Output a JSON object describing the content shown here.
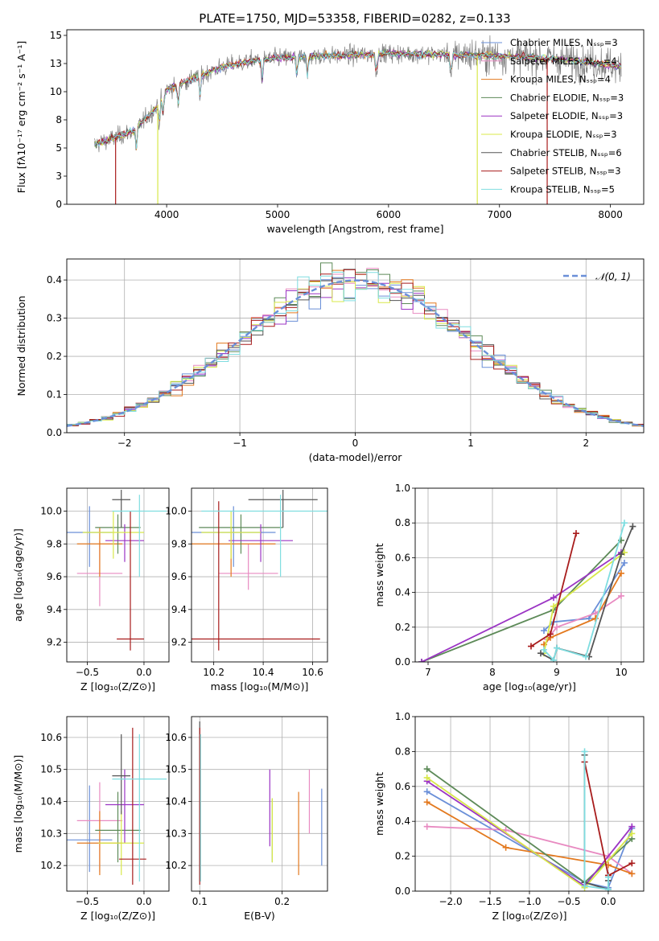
{
  "figure": {
    "title": "PLATE=1750, MJD=53358, FIBERID=0282, z=0.133"
  },
  "colors": {
    "Chabrier MILES": "#6a8fd8",
    "Salpeter MILES": "#e88ac1",
    "Kroupa MILES": "#e3791e",
    "Chabrier ELODIE": "#5d8a58",
    "Salpeter ELODIE": "#9b34c4",
    "Kroupa ELODIE": "#d8e84a",
    "Chabrier STELIB": "#555555",
    "Salpeter STELIB": "#a81c1c",
    "Kroupa STELIB": "#7fdde0",
    "data": "#7f7f7f",
    "normal": "#6a8fd8",
    "grid": "#b0b0b0"
  },
  "chart_data": [
    {
      "id": "spectrum",
      "type": "line",
      "xlabel": "wavelength [Angstrom, rest frame]",
      "ylabel": "Flux [fλ10⁻¹⁷ erg cm⁻² s⁻¹ A⁻¹]",
      "xlim": [
        3100,
        8300
      ],
      "ylim": [
        0,
        15.5
      ],
      "xticks": [
        4000,
        5000,
        6000,
        7000,
        8000
      ],
      "yticks": [
        0.0,
        2.5,
        5.0,
        7.5,
        10.0,
        12.5,
        15.0
      ],
      "legend_position": "top-right",
      "series": [
        {
          "name": "Chabrier MILES, Nₛₛₚ=3",
          "key": "Chabrier MILES"
        },
        {
          "name": "Salpeter MILES, Nₛₛₚ=4",
          "key": "Salpeter MILES"
        },
        {
          "name": "Kroupa MILES, Nₛₛₚ=4",
          "key": "Kroupa MILES"
        },
        {
          "name": "Chabrier ELODIE, Nₛₛₚ=3",
          "key": "Chabrier ELODIE"
        },
        {
          "name": "Salpeter ELODIE, Nₛₛₚ=3",
          "key": "Salpeter ELODIE"
        },
        {
          "name": "Kroupa ELODIE, Nₛₛₚ=3",
          "key": "Kroupa ELODIE"
        },
        {
          "name": "Chabrier STELIB, Nₛₛₚ=6",
          "key": "Chabrier STELIB"
        },
        {
          "name": "Salpeter STELIB, Nₛₛₚ=3",
          "key": "Salpeter STELIB"
        },
        {
          "name": "Kroupa STELIB, Nₛₛₚ=5",
          "key": "Kroupa STELIB"
        }
      ],
      "continuum": {
        "x": [
          3350,
          3500,
          3700,
          3900,
          4000,
          4200,
          4500,
          4800,
          5000,
          5300,
          5600,
          6000,
          6500,
          7000,
          7500,
          8000,
          8100
        ],
        "y": [
          5.3,
          5.8,
          6.5,
          8.5,
          10.2,
          11.0,
          12.2,
          12.8,
          13.0,
          13.2,
          13.2,
          13.4,
          13.3,
          13.2,
          12.9,
          12.4,
          12.2
        ]
      },
      "vertical_drops": [
        {
          "x": 3540,
          "series": "Salpeter STELIB"
        },
        {
          "x": 3920,
          "series": "Kroupa ELODIE"
        },
        {
          "x": 6800,
          "series": "Kroupa ELODIE"
        },
        {
          "x": 7430,
          "series": "Salpeter STELIB"
        }
      ]
    },
    {
      "id": "residuals",
      "type": "histogram",
      "xlabel": "(data-model)/error",
      "ylabel": "Normed distribution",
      "xlim": [
        -2.5,
        2.5
      ],
      "ylim": [
        0,
        0.455
      ],
      "xticks": [
        -2,
        -1,
        0,
        1,
        2
      ],
      "yticks": [
        0.0,
        0.1,
        0.2,
        0.3,
        0.4
      ],
      "bin_width": 0.1,
      "legend": "𝒩(0, 1)",
      "legend_position": "top-right",
      "normal": {
        "mean": 0,
        "sigma": 1
      }
    },
    {
      "id": "age-vs-z",
      "type": "errorbar",
      "xlabel": "Z [log₁₀(Z/Z⊙)]",
      "ylabel": "age  [log₁₀(age/yr)]",
      "xlim": [
        -0.68,
        0.22
      ],
      "ylim": [
        9.08,
        10.14
      ],
      "xticks": [
        -0.5,
        0.0
      ],
      "yticks": [
        9.2,
        9.4,
        9.6,
        9.8,
        10.0
      ],
      "points": [
        {
          "key": "Chabrier MILES",
          "x": -0.48,
          "xerr": 0.2,
          "y": 9.87,
          "yerr": [
            0.21,
            0.16
          ]
        },
        {
          "key": "Salpeter MILES",
          "x": -0.39,
          "xerr": 0.2,
          "y": 9.62,
          "yerr": [
            0.2,
            0.2
          ]
        },
        {
          "key": "Kroupa MILES",
          "x": -0.39,
          "xerr": 0.2,
          "y": 9.8,
          "yerr": [
            0.2,
            0.1
          ]
        },
        {
          "key": "Chabrier ELODIE",
          "x": -0.23,
          "xerr": 0.2,
          "y": 9.9,
          "yerr": [
            0.16,
            0.08
          ]
        },
        {
          "key": "Salpeter ELODIE",
          "x": -0.17,
          "xerr": 0.17,
          "y": 9.82,
          "yerr": [
            0.13,
            0.1
          ]
        },
        {
          "key": "Kroupa ELODIE",
          "x": -0.27,
          "xerr": 0.27,
          "y": 9.87,
          "yerr": [
            0.16,
            0.13
          ]
        },
        {
          "key": "Chabrier STELIB",
          "x": -0.2,
          "xerr": 0.08,
          "y": 10.07,
          "yerr": [
            0.17,
            0.06
          ]
        },
        {
          "key": "Salpeter STELIB",
          "x": -0.12,
          "xerr": 0.12,
          "y": 9.22,
          "yerr": [
            0.07,
            0.78
          ]
        },
        {
          "key": "Kroupa STELIB",
          "x": -0.04,
          "xerr": 0.24,
          "y": 10.0,
          "yerr": [
            0.4,
            0.1
          ]
        }
      ]
    },
    {
      "id": "age-vs-mass",
      "type": "errorbar",
      "xlabel": "mass [log₁₀(M/M⊙)]",
      "ylabel": "",
      "xlim": [
        10.11,
        10.66
      ],
      "ylim": [
        9.08,
        10.14
      ],
      "xticks": [
        10.2,
        10.4,
        10.6
      ],
      "yticks": [
        9.2,
        9.4,
        9.6,
        9.8,
        10.0
      ],
      "points": [
        {
          "key": "Chabrier MILES",
          "x": 10.28,
          "xerr": 0.17,
          "y": 9.87,
          "yerr": [
            0.21,
            0.16
          ]
        },
        {
          "key": "Salpeter MILES",
          "x": 10.34,
          "xerr": 0.12,
          "y": 9.62,
          "yerr": [
            0.1,
            0.18
          ]
        },
        {
          "key": "Kroupa MILES",
          "x": 10.27,
          "xerr": 0.18,
          "y": 9.8,
          "yerr": [
            0.2,
            0.1
          ]
        },
        {
          "key": "Chabrier ELODIE",
          "x": 10.31,
          "xerr": 0.17,
          "y": 9.9,
          "yerr": [
            0.16,
            0.08
          ]
        },
        {
          "key": "Salpeter ELODIE",
          "x": 10.39,
          "xerr": 0.13,
          "y": 9.82,
          "yerr": [
            0.13,
            0.1
          ]
        },
        {
          "key": "Kroupa ELODIE",
          "x": 10.27,
          "xerr": 0.12,
          "y": 9.87,
          "yerr": [
            0.16,
            0.13
          ]
        },
        {
          "key": "Chabrier STELIB",
          "x": 10.48,
          "xerr": 0.14,
          "y": 10.07,
          "yerr": [
            0.17,
            0.06
          ]
        },
        {
          "key": "Salpeter STELIB",
          "x": 10.22,
          "xerr": 0.41,
          "y": 9.22,
          "yerr": [
            0.07,
            0.84
          ]
        },
        {
          "key": "Kroupa STELIB",
          "x": 10.47,
          "xerr": 0.32,
          "y": 10.0,
          "yerr": [
            0.4,
            0.1
          ]
        }
      ]
    },
    {
      "id": "mass-weight-vs-age",
      "type": "line",
      "xlabel": "age  [log₁₀(age/yr)]",
      "ylabel": "mass weight",
      "xlim": [
        6.8,
        10.35
      ],
      "ylim": [
        0,
        1
      ],
      "xticks": [
        7,
        8,
        9,
        10
      ],
      "yticks": [
        0.0,
        0.2,
        0.4,
        0.6,
        0.8,
        1.0
      ],
      "series": [
        {
          "key": "Chabrier MILES",
          "x": [
            8.8,
            8.95,
            9.5,
            10.05
          ],
          "y": [
            0.18,
            0.23,
            0.25,
            0.57
          ]
        },
        {
          "key": "Salpeter MILES",
          "x": [
            8.85,
            9.0,
            9.6,
            10.0
          ],
          "y": [
            0.13,
            0.2,
            0.28,
            0.38
          ]
        },
        {
          "key": "Kroupa MILES",
          "x": [
            8.8,
            8.9,
            9.6,
            10.0
          ],
          "y": [
            0.1,
            0.14,
            0.25,
            0.51
          ]
        },
        {
          "key": "Chabrier ELODIE",
          "x": [
            6.9,
            8.95,
            10.0
          ],
          "y": [
            0.0,
            0.3,
            0.7
          ]
        },
        {
          "key": "Salpeter ELODIE",
          "x": [
            6.9,
            8.95,
            10.0
          ],
          "y": [
            0.0,
            0.37,
            0.63
          ]
        },
        {
          "key": "Kroupa ELODIE",
          "x": [
            8.8,
            8.95,
            10.05
          ],
          "y": [
            0.05,
            0.32,
            0.63
          ]
        },
        {
          "key": "Chabrier STELIB",
          "x": [
            8.75,
            8.95,
            9.0,
            9.5,
            10.0,
            10.18
          ],
          "y": [
            0.05,
            0.01,
            0.08,
            0.03,
            0.62,
            0.78
          ]
        },
        {
          "key": "Salpeter STELIB",
          "x": [
            8.6,
            8.9,
            9.3
          ],
          "y": [
            0.09,
            0.16,
            0.74
          ]
        },
        {
          "key": "Kroupa STELIB",
          "x": [
            8.8,
            8.95,
            9.0,
            9.45,
            10.05
          ],
          "y": [
            0.07,
            0.01,
            0.08,
            0.03,
            0.8
          ]
        }
      ]
    },
    {
      "id": "mass-vs-z",
      "type": "errorbar",
      "xlabel": "Z [log₁₀(Z/Z⊙)]",
      "ylabel": "mass [log₁₀(M/M⊙)]",
      "xlim": [
        -0.68,
        0.22
      ],
      "ylim": [
        10.12,
        10.665
      ],
      "xticks": [
        -0.5,
        0.0
      ],
      "yticks": [
        10.2,
        10.3,
        10.4,
        10.5,
        10.6
      ],
      "points": [
        {
          "key": "Chabrier MILES",
          "x": -0.48,
          "xerr": 0.2,
          "y": 10.28,
          "yerr": [
            0.1,
            0.17
          ]
        },
        {
          "key": "Salpeter MILES",
          "x": -0.39,
          "xerr": 0.2,
          "y": 10.34,
          "yerr": [
            0.16,
            0.12
          ]
        },
        {
          "key": "Kroupa MILES",
          "x": -0.39,
          "xerr": 0.2,
          "y": 10.27,
          "yerr": [
            0.1,
            0.1
          ]
        },
        {
          "key": "Chabrier ELODIE",
          "x": -0.23,
          "xerr": 0.2,
          "y": 10.31,
          "yerr": [
            0.1,
            0.12
          ]
        },
        {
          "key": "Salpeter ELODIE",
          "x": -0.17,
          "xerr": 0.17,
          "y": 10.39,
          "yerr": [
            0.12,
            0.11
          ]
        },
        {
          "key": "Kroupa ELODIE",
          "x": -0.2,
          "xerr": 0.2,
          "y": 10.27,
          "yerr": [
            0.1,
            0.1
          ]
        },
        {
          "key": "Chabrier STELIB",
          "x": -0.2,
          "xerr": 0.08,
          "y": 10.48,
          "yerr": [
            0.12,
            0.13
          ]
        },
        {
          "key": "Salpeter STELIB",
          "x": -0.1,
          "xerr": 0.12,
          "y": 10.22,
          "yerr": [
            0.08,
            0.41
          ]
        },
        {
          "key": "Kroupa STELIB",
          "x": -0.04,
          "xerr": 0.24,
          "y": 10.47,
          "yerr": [
            0.32,
            0.14
          ]
        }
      ]
    },
    {
      "id": "mass-vs-ebv",
      "type": "errorbar",
      "xlabel": "E(B-V)",
      "ylabel": "",
      "xlim": [
        0.09,
        0.255
      ],
      "ylim": [
        10.12,
        10.665
      ],
      "xticks": [
        0.1,
        0.2
      ],
      "yticks": [
        10.2,
        10.3,
        10.4,
        10.5,
        10.6
      ],
      "points": [
        {
          "key": "Chabrier MILES",
          "x": 0.248,
          "y": 10.32,
          "yerr": [
            0.12,
            0.12
          ]
        },
        {
          "key": "Salpeter MILES",
          "x": 0.233,
          "y": 10.4,
          "yerr": [
            0.1,
            0.1
          ]
        },
        {
          "key": "Kroupa MILES",
          "x": 0.22,
          "y": 10.3,
          "yerr": [
            0.13,
            0.13
          ]
        },
        {
          "key": "Chabrier ELODIE",
          "x": 0.188,
          "y": 10.31,
          "yerr": [
            0.1,
            0.1
          ]
        },
        {
          "key": "Salpeter ELODIE",
          "x": 0.185,
          "y": 10.38,
          "yerr": [
            0.12,
            0.12
          ]
        },
        {
          "key": "Kroupa ELODIE",
          "x": 0.188,
          "y": 10.31,
          "yerr": [
            0.1,
            0.1
          ]
        },
        {
          "key": "Chabrier STELIB",
          "x": 0.1,
          "y": 10.4,
          "yerr": [
            0.25,
            0.25
          ]
        },
        {
          "key": "Salpeter STELIB",
          "x": 0.1,
          "y": 10.38,
          "yerr": [
            0.24,
            0.25
          ]
        },
        {
          "key": "Kroupa STELIB",
          "x": 0.101,
          "y": 10.4,
          "yerr": [
            0.25,
            0.21
          ]
        }
      ]
    },
    {
      "id": "mass-weight-vs-z",
      "type": "line",
      "xlabel": "Z [log₁₀(Z/Z⊙)]",
      "ylabel": "mass weight",
      "xlim": [
        -2.45,
        0.45
      ],
      "ylim": [
        0,
        1
      ],
      "xticks": [
        -2.0,
        -1.5,
        -1.0,
        -0.5,
        0.0
      ],
      "yticks": [
        0.0,
        0.2,
        0.4,
        0.6,
        0.8,
        1.0
      ],
      "series": [
        {
          "key": "Chabrier MILES",
          "x": [
            -2.3,
            -0.3,
            0.0,
            0.3
          ],
          "y": [
            0.57,
            0.05,
            0.02,
            0.36
          ]
        },
        {
          "key": "Salpeter MILES",
          "x": [
            -2.3,
            -1.3,
            0.0,
            0.3
          ],
          "y": [
            0.37,
            0.35,
            0.2,
            0.1
          ]
        },
        {
          "key": "Kroupa MILES",
          "x": [
            -2.3,
            -1.3,
            0.0,
            0.3
          ],
          "y": [
            0.51,
            0.25,
            0.15,
            0.1
          ]
        },
        {
          "key": "Chabrier ELODIE",
          "x": [
            -2.3,
            -0.3,
            0.3
          ],
          "y": [
            0.7,
            0.05,
            0.3
          ]
        },
        {
          "key": "Salpeter ELODIE",
          "x": [
            -2.3,
            -0.3,
            0.3
          ],
          "y": [
            0.63,
            0.03,
            0.37
          ]
        },
        {
          "key": "Kroupa ELODIE",
          "x": [
            -2.3,
            -0.3,
            0.3
          ],
          "y": [
            0.65,
            0.02,
            0.33
          ]
        },
        {
          "key": "Chabrier STELIB",
          "x": [
            -0.3,
            -0.3,
            0.0,
            0.0
          ],
          "y": [
            0.78,
            0.05,
            0.01,
            0.06
          ]
        },
        {
          "key": "Salpeter STELIB",
          "x": [
            -0.3,
            0.0,
            0.3
          ],
          "y": [
            0.74,
            0.09,
            0.16
          ]
        },
        {
          "key": "Kroupa STELIB",
          "x": [
            -0.3,
            -0.3,
            0.0,
            0.0
          ],
          "y": [
            0.8,
            0.03,
            0.01,
            0.08
          ]
        }
      ]
    }
  ]
}
